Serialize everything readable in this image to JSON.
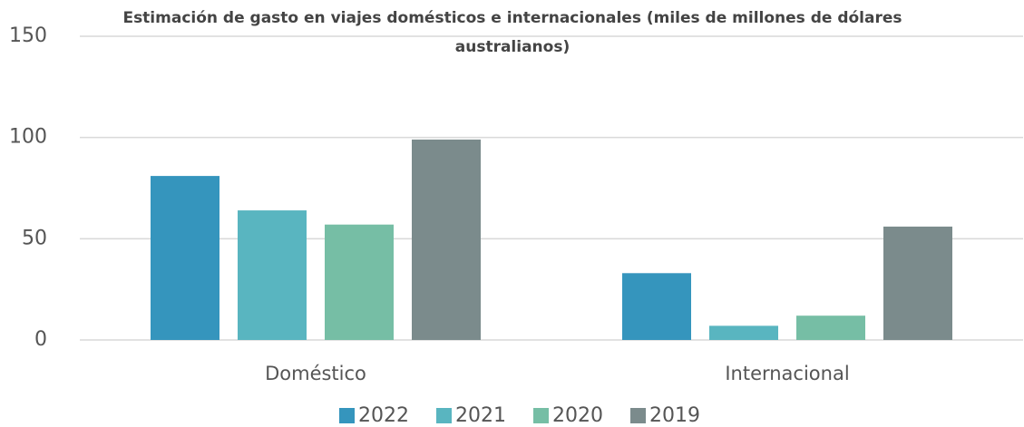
{
  "chart_data": {
    "type": "bar",
    "title": "Estimación de gasto en viajes domésticos e internacionales (miles de millones de dólares australianos)",
    "categories": [
      "Doméstico",
      "Internacional"
    ],
    "series": [
      {
        "name": "2022",
        "color": "#3595bd",
        "values": [
          81,
          33
        ]
      },
      {
        "name": "2021",
        "color": "#59b5c0",
        "values": [
          64,
          7
        ]
      },
      {
        "name": "2020",
        "color": "#76bea5",
        "values": [
          57,
          12
        ]
      },
      {
        "name": "2019",
        "color": "#7b8b8c",
        "values": [
          99,
          56
        ]
      }
    ],
    "ylim": [
      0,
      150
    ],
    "yticks": [
      0,
      50,
      100,
      150
    ],
    "grid": true,
    "legend": "bottom"
  }
}
